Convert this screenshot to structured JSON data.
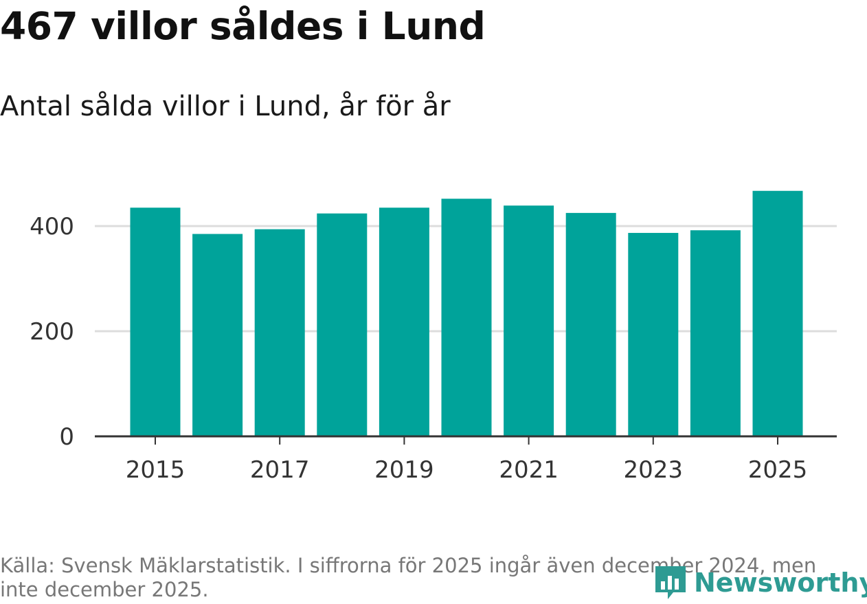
{
  "title": "467 villor såldes i Lund",
  "subtitle": "Antal sålda villor i Lund, år för år",
  "source": "Källa: Svensk Mäklarstatistik. I siffrorna för 2025 ingår även december 2024, men inte december 2025.",
  "logo": {
    "text": "Newsworthy",
    "icon": "newsworthy-logo-icon"
  },
  "colors": {
    "bar": "#00a39a",
    "grid": "#dddddd",
    "axis": "#333333",
    "brand": "#2e9b93"
  },
  "chart_data": {
    "type": "bar",
    "title": "467 villor såldes i Lund",
    "subtitle": "Antal sålda villor i Lund, år för år",
    "xlabel": "",
    "ylabel": "",
    "categories": [
      "2015",
      "2016",
      "2017",
      "2018",
      "2019",
      "2020",
      "2021",
      "2022",
      "2023",
      "2024",
      "2025"
    ],
    "values": [
      435,
      385,
      394,
      424,
      435,
      452,
      439,
      425,
      387,
      392,
      467
    ],
    "ylim": [
      0,
      500
    ],
    "yticks": [
      0,
      200,
      400
    ],
    "ytick_labels": [
      "0",
      "200",
      "400"
    ],
    "xtick_labels": [
      "2015",
      "2017",
      "2019",
      "2021",
      "2023",
      "2025"
    ],
    "grid": true,
    "legend": "none"
  }
}
